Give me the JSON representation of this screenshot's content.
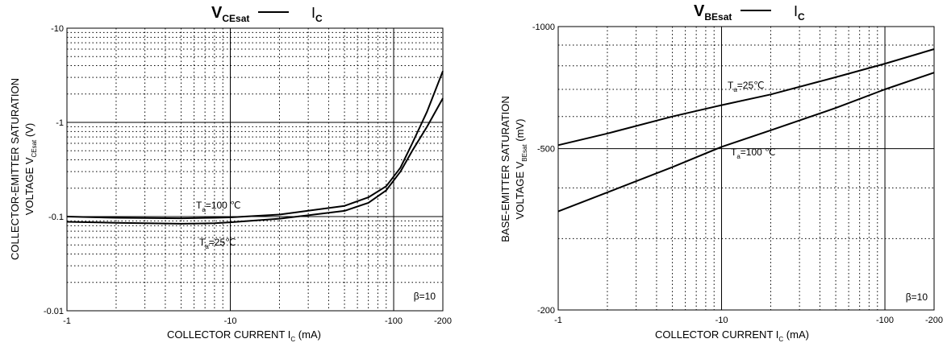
{
  "chart_data": [
    {
      "type": "line",
      "title_main": "V",
      "title_sub": "CEsat",
      "title_vs": "I",
      "title_vs_sub": "C",
      "ylabel_line1": "COLLECTOR-EMITTER SATURATION",
      "ylabel_line2": "VOLTAGE   V",
      "ylabel_sub": "CEsat",
      "ylabel_unit": "(V)",
      "xlabel": "COLLECTOR CURRENT I",
      "xlabel_sub": "C",
      "xlabel_unit": "(mA)",
      "xscale": "log",
      "yscale": "log",
      "xlim": [
        1,
        200
      ],
      "ylim": [
        0.01,
        10
      ],
      "x_ticks": [
        {
          "v": 1,
          "label": "-1"
        },
        {
          "v": 10,
          "label": "-10"
        },
        {
          "v": 100,
          "label": "-100"
        },
        {
          "v": 200,
          "label": "-200"
        }
      ],
      "y_ticks": [
        {
          "v": 10,
          "label": "-10"
        },
        {
          "v": 1,
          "label": "-1"
        },
        {
          "v": 0.1,
          "label": "-0.1"
        },
        {
          "v": 0.01,
          "label": "-0.01"
        }
      ],
      "annotation": "β=10",
      "series": [
        {
          "label_main": "T =100 ℃",
          "label_sub": "a",
          "x": [
            1,
            2,
            5,
            8,
            10,
            20,
            50,
            70,
            90,
            110,
            130,
            160,
            200
          ],
          "y": [
            0.1,
            0.097,
            0.096,
            0.097,
            0.098,
            0.105,
            0.13,
            0.16,
            0.21,
            0.33,
            0.6,
            1.3,
            3.5
          ]
        },
        {
          "label_main": "T =25℃",
          "label_sub": "a",
          "x": [
            1,
            2,
            5,
            8,
            10,
            20,
            50,
            70,
            90,
            110,
            130,
            160,
            200
          ],
          "y": [
            0.088,
            0.086,
            0.084,
            0.085,
            0.087,
            0.095,
            0.115,
            0.14,
            0.19,
            0.3,
            0.5,
            0.9,
            1.8
          ]
        }
      ]
    },
    {
      "type": "line",
      "title_main": "V",
      "title_sub": "BEsat",
      "title_vs": "I",
      "title_vs_sub": "C",
      "ylabel_line1": "BASE-EMITTER SATURATION",
      "ylabel_line2": "VOLTAGE   V",
      "ylabel_sub": "BEsat",
      "ylabel_unit": "(mV)",
      "xlabel": "COLLECTOR CURRENT I",
      "xlabel_sub": "C",
      "xlabel_unit": "(mA)",
      "xscale": "log",
      "yscale": "log",
      "xlim": [
        1,
        200
      ],
      "ylim": [
        200,
        1000
      ],
      "x_ticks": [
        {
          "v": 1,
          "label": "-1"
        },
        {
          "v": 10,
          "label": "-10"
        },
        {
          "v": 100,
          "label": "-100"
        },
        {
          "v": 200,
          "label": "-200"
        }
      ],
      "y_ticks": [
        {
          "v": 1000,
          "label": "-1000"
        },
        {
          "v": 500,
          "label": "-500"
        },
        {
          "v": 200,
          "label": "-200"
        }
      ],
      "annotation": "β=10",
      "series": [
        {
          "label_main": "T =25℃",
          "label_sub": "a",
          "x": [
            1,
            2,
            5,
            10,
            20,
            50,
            100,
            200
          ],
          "y": [
            510,
            545,
            600,
            640,
            680,
            750,
            810,
            880
          ]
        },
        {
          "label_main": "T =100 ℃",
          "label_sub": "a",
          "x": [
            1,
            2,
            5,
            10,
            20,
            50,
            100,
            200
          ],
          "y": [
            350,
            390,
            450,
            505,
            555,
            630,
            700,
            770
          ]
        }
      ]
    }
  ]
}
